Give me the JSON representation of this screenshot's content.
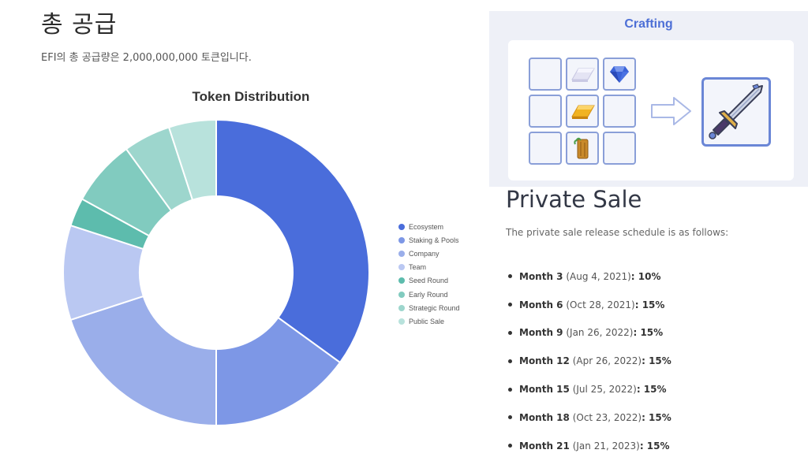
{
  "section": {
    "title": "총 공급",
    "supply_text": "EFI의 총 공급량은 2,000,000,000 토큰입니다."
  },
  "chart_data": {
    "type": "pie",
    "title": "Token Distribution",
    "donut": true,
    "legend_position": "right",
    "categories": [
      "Ecosystem",
      "Staking & Pools",
      "Company",
      "Team",
      "Seed Round",
      "Early Round",
      "Strategic Round",
      "Public Sale"
    ],
    "values": [
      35,
      15,
      20,
      10,
      3,
      7,
      5,
      5
    ],
    "colors": [
      "#4a6ddb",
      "#7d97e6",
      "#9aaeea",
      "#bac8f2",
      "#5dbcad",
      "#81cbbf",
      "#9dd6cd",
      "#b8e2dc"
    ]
  },
  "crafting": {
    "title": "Crafting",
    "grid": [
      "",
      "silver-ingot-icon",
      "gem-icon",
      "",
      "gold-ingot-icon",
      "",
      "",
      "wood-log-icon",
      ""
    ],
    "arrow_icon": "arrow-right-icon",
    "result_icon": "sword-icon"
  },
  "private_sale": {
    "title": "Private Sale",
    "description": "The private sale release schedule is as follows:",
    "schedule": [
      {
        "month": "Month 3",
        "date": "(Aug 4, 2021)",
        "percent": ": 10%"
      },
      {
        "month": "Month 6",
        "date": "(Oct 28, 2021)",
        "percent": ": 15%"
      },
      {
        "month": "Month 9",
        "date": "(Jan 26, 2022)",
        "percent": ": 15%"
      },
      {
        "month": "Month 12",
        "date": "(Apr 26, 2022)",
        "percent": ": 15%"
      },
      {
        "month": "Month 15",
        "date": "(Jul 25, 2022)",
        "percent": ": 15%"
      },
      {
        "month": "Month 18",
        "date": "(Oct 23, 2022)",
        "percent": ": 15%"
      },
      {
        "month": "Month 21",
        "date": "(Jan 21, 2023)",
        "percent": ": 15%"
      }
    ]
  }
}
